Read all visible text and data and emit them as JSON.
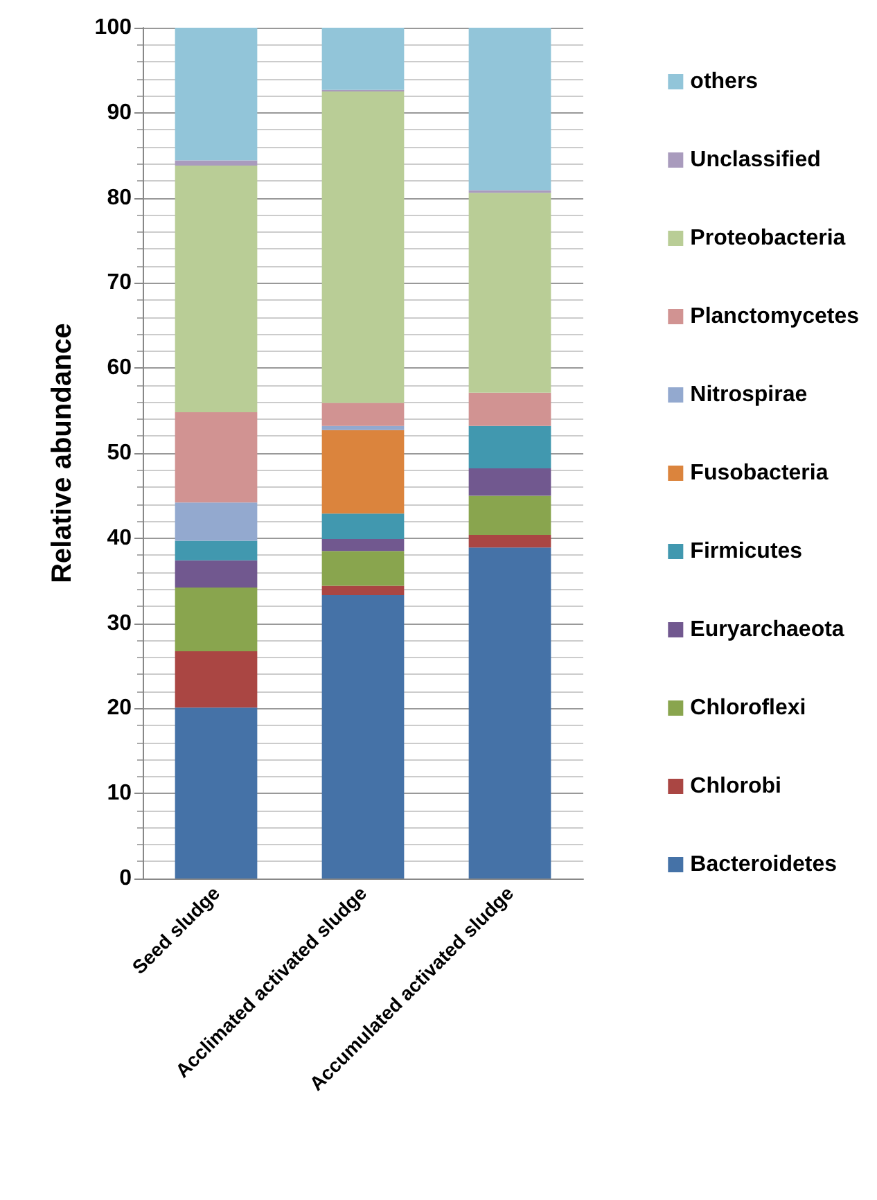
{
  "chart_data": {
    "type": "bar",
    "stacked": true,
    "ylabel": "Relative abundance",
    "categories": [
      "Seed sludge",
      "Acclimated activated sludge",
      "Accumulated activated sludge"
    ],
    "series": [
      {
        "name": "Bacteroidetes",
        "color": "#4572a7",
        "values": [
          20.1,
          33.3,
          38.9
        ]
      },
      {
        "name": "Chlorobi",
        "color": "#aa4643",
        "values": [
          6.6,
          1.1,
          1.5
        ]
      },
      {
        "name": "Chloroflexi",
        "color": "#89a54e",
        "values": [
          7.5,
          4.1,
          4.6
        ]
      },
      {
        "name": "Euryarchaeota",
        "color": "#71588f",
        "values": [
          3.2,
          1.4,
          3.2
        ]
      },
      {
        "name": "Firmicutes",
        "color": "#4198af",
        "values": [
          2.3,
          3.0,
          5.0
        ]
      },
      {
        "name": "Fusobacteria",
        "color": "#db843d",
        "values": [
          0,
          9.8,
          0
        ]
      },
      {
        "name": "Nitrospirae",
        "color": "#93a9cf",
        "values": [
          4.5,
          0.5,
          0
        ]
      },
      {
        "name": "Planctomycetes",
        "color": "#d19392",
        "values": [
          10.6,
          2.7,
          3.9
        ]
      },
      {
        "name": "Proteobacteria",
        "color": "#b9cd96",
        "values": [
          29.0,
          36.6,
          23.5
        ]
      },
      {
        "name": "Unclassified",
        "color": "#a99bbd",
        "values": [
          0.6,
          0.2,
          0.3
        ]
      },
      {
        "name": "others",
        "color": "#92c5d9",
        "values": [
          15.6,
          7.3,
          19.1
        ]
      }
    ],
    "ylim": [
      0,
      100
    ],
    "yticks": [
      0,
      10,
      20,
      30,
      40,
      50,
      60,
      70,
      80,
      90,
      100
    ],
    "grid": true,
    "legend": "right"
  }
}
